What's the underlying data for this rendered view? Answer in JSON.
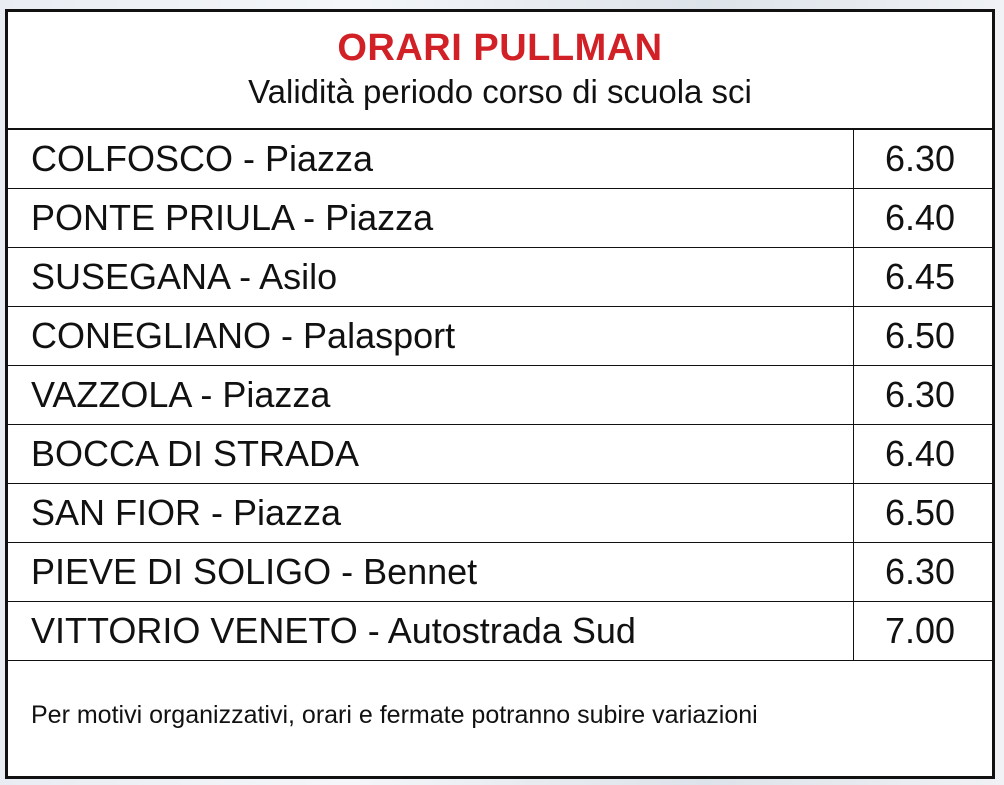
{
  "colors": {
    "title": "#d22027",
    "text": "#111111",
    "border": "#111111"
  },
  "header": {
    "title": "ORARI PULLMAN",
    "subtitle": "Validità periodo corso di scuola sci"
  },
  "table": {
    "rows": [
      {
        "stop": "COLFOSCO - Piazza",
        "time": "6.30"
      },
      {
        "stop": "PONTE PRIULA - Piazza",
        "time": "6.40"
      },
      {
        "stop": "SUSEGANA - Asilo",
        "time": "6.45"
      },
      {
        "stop": "CONEGLIANO - Palasport",
        "time": "6.50"
      },
      {
        "stop": "VAZZOLA - Piazza",
        "time": "6.30"
      },
      {
        "stop": "BOCCA DI STRADA",
        "time": "6.40"
      },
      {
        "stop": "SAN FIOR - Piazza",
        "time": "6.50"
      },
      {
        "stop": "PIEVE DI SOLIGO - Bennet",
        "time": "6.30"
      },
      {
        "stop": "VITTORIO VENETO - Autostrada Sud",
        "time": "7.00"
      }
    ]
  },
  "footer": {
    "note": "Per motivi organizzativi, orari e fermate potranno subire variazioni"
  }
}
